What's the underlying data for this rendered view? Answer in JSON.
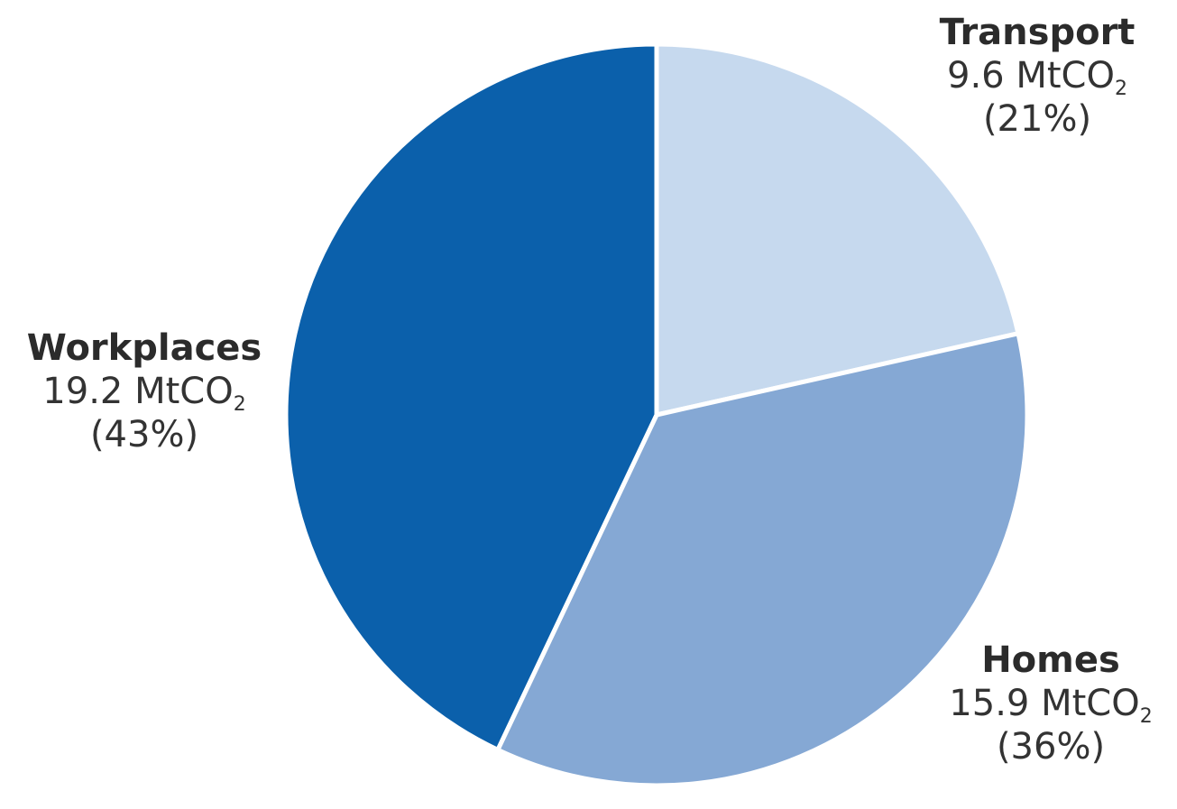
{
  "chart_data": {
    "type": "pie",
    "unit": "MtCO",
    "unit_subscript": "2",
    "slices": [
      {
        "label": "Transport",
        "value": 9.6,
        "value_text": "9.6",
        "percent_text": "(21%)",
        "color": "#c6d9ee"
      },
      {
        "label": "Homes",
        "value": 15.9,
        "value_text": "15.9",
        "percent_text": "(36%)",
        "color": "#85a8d4"
      },
      {
        "label": "Workplaces",
        "value": 19.2,
        "value_text": "19.2",
        "percent_text": "(43%)",
        "color": "#0b60ab"
      }
    ]
  }
}
